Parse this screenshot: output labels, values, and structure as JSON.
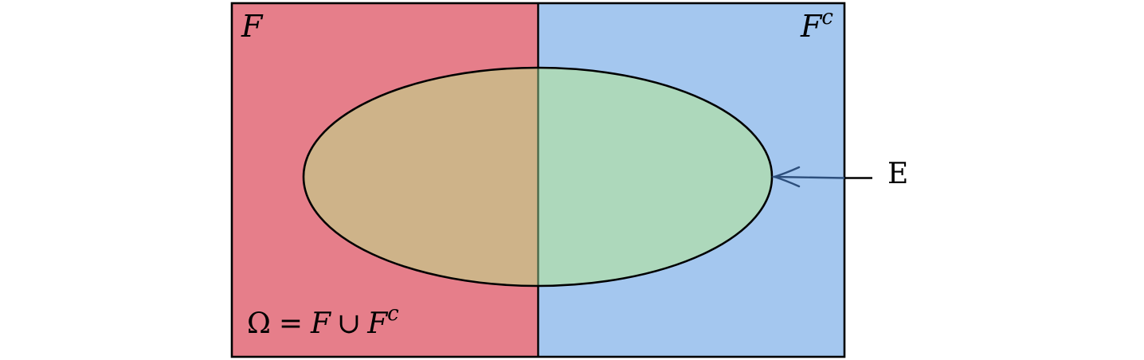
{
  "diagram": {
    "set_f_label": "F",
    "set_fc_label_base": "F",
    "set_fc_label_sup": "c",
    "ellipse_label": "E",
    "omega_equation": {
      "omega": "Ω",
      "equals": "=",
      "f": "F",
      "union": "∪",
      "fc_base": "F",
      "fc_sup": "c"
    }
  },
  "colors": {
    "set_f_fill": "#e67e8a",
    "set_fc_fill": "#a4c7ef",
    "ellipse_left_fill": "#ceb389",
    "ellipse_right_fill": "#add8bb",
    "divider_inside_ellipse": "#4a6848",
    "arrow": "#2d4f7c",
    "outline": "#000000"
  }
}
